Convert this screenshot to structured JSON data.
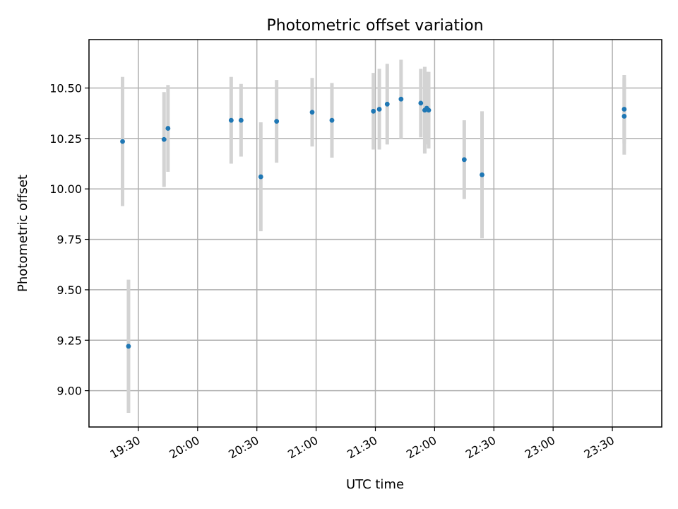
{
  "chart_data": {
    "type": "scatter",
    "title": "Photometric offset variation",
    "xlabel": "UTC time",
    "ylabel": "Photometric offset",
    "grid": true,
    "xlim": [
      "19:05",
      "23:55"
    ],
    "ylim": [
      8.82,
      10.74
    ],
    "x_ticks": [
      "19:30",
      "20:00",
      "20:30",
      "21:00",
      "21:30",
      "22:00",
      "22:30",
      "23:00",
      "23:30"
    ],
    "y_ticks": [
      "9.00",
      "9.25",
      "9.50",
      "9.75",
      "10.00",
      "10.25",
      "10.50"
    ],
    "colors": {
      "point": "#1f77b4",
      "errorbar": "#d3d3d3"
    },
    "series": [
      {
        "points": [
          {
            "x": "19:22",
            "y": 10.235,
            "err": 0.32
          },
          {
            "x": "19:25",
            "y": 9.22,
            "err": 0.33
          },
          {
            "x": "19:43",
            "y": 10.245,
            "err": 0.235
          },
          {
            "x": "19:45",
            "y": 10.3,
            "err": 0.215
          },
          {
            "x": "20:17",
            "y": 10.34,
            "err": 0.215
          },
          {
            "x": "20:22",
            "y": 10.34,
            "err": 0.18
          },
          {
            "x": "20:32",
            "y": 10.06,
            "err": 0.27
          },
          {
            "x": "20:40",
            "y": 10.335,
            "err": 0.205
          },
          {
            "x": "20:58",
            "y": 10.38,
            "err": 0.17
          },
          {
            "x": "21:08",
            "y": 10.34,
            "err": 0.185
          },
          {
            "x": "21:29",
            "y": 10.385,
            "err": 0.19
          },
          {
            "x": "21:32",
            "y": 10.395,
            "err": 0.2
          },
          {
            "x": "21:36",
            "y": 10.42,
            "err": 0.2
          },
          {
            "x": "21:43",
            "y": 10.445,
            "err": 0.195
          },
          {
            "x": "21:53",
            "y": 10.425,
            "err": 0.17
          },
          {
            "x": "21:55",
            "y": 10.39,
            "err": 0.215
          },
          {
            "x": "21:56",
            "y": 10.4,
            "err": 0.18
          },
          {
            "x": "21:57",
            "y": 10.39,
            "err": 0.19
          },
          {
            "x": "22:15",
            "y": 10.145,
            "err": 0.195
          },
          {
            "x": "22:24",
            "y": 10.07,
            "err": 0.315
          },
          {
            "x": "23:36",
            "y": 10.395,
            "err": 0.17
          },
          {
            "x": "23:36",
            "y": 10.36,
            "err": 0.19
          }
        ]
      }
    ]
  }
}
